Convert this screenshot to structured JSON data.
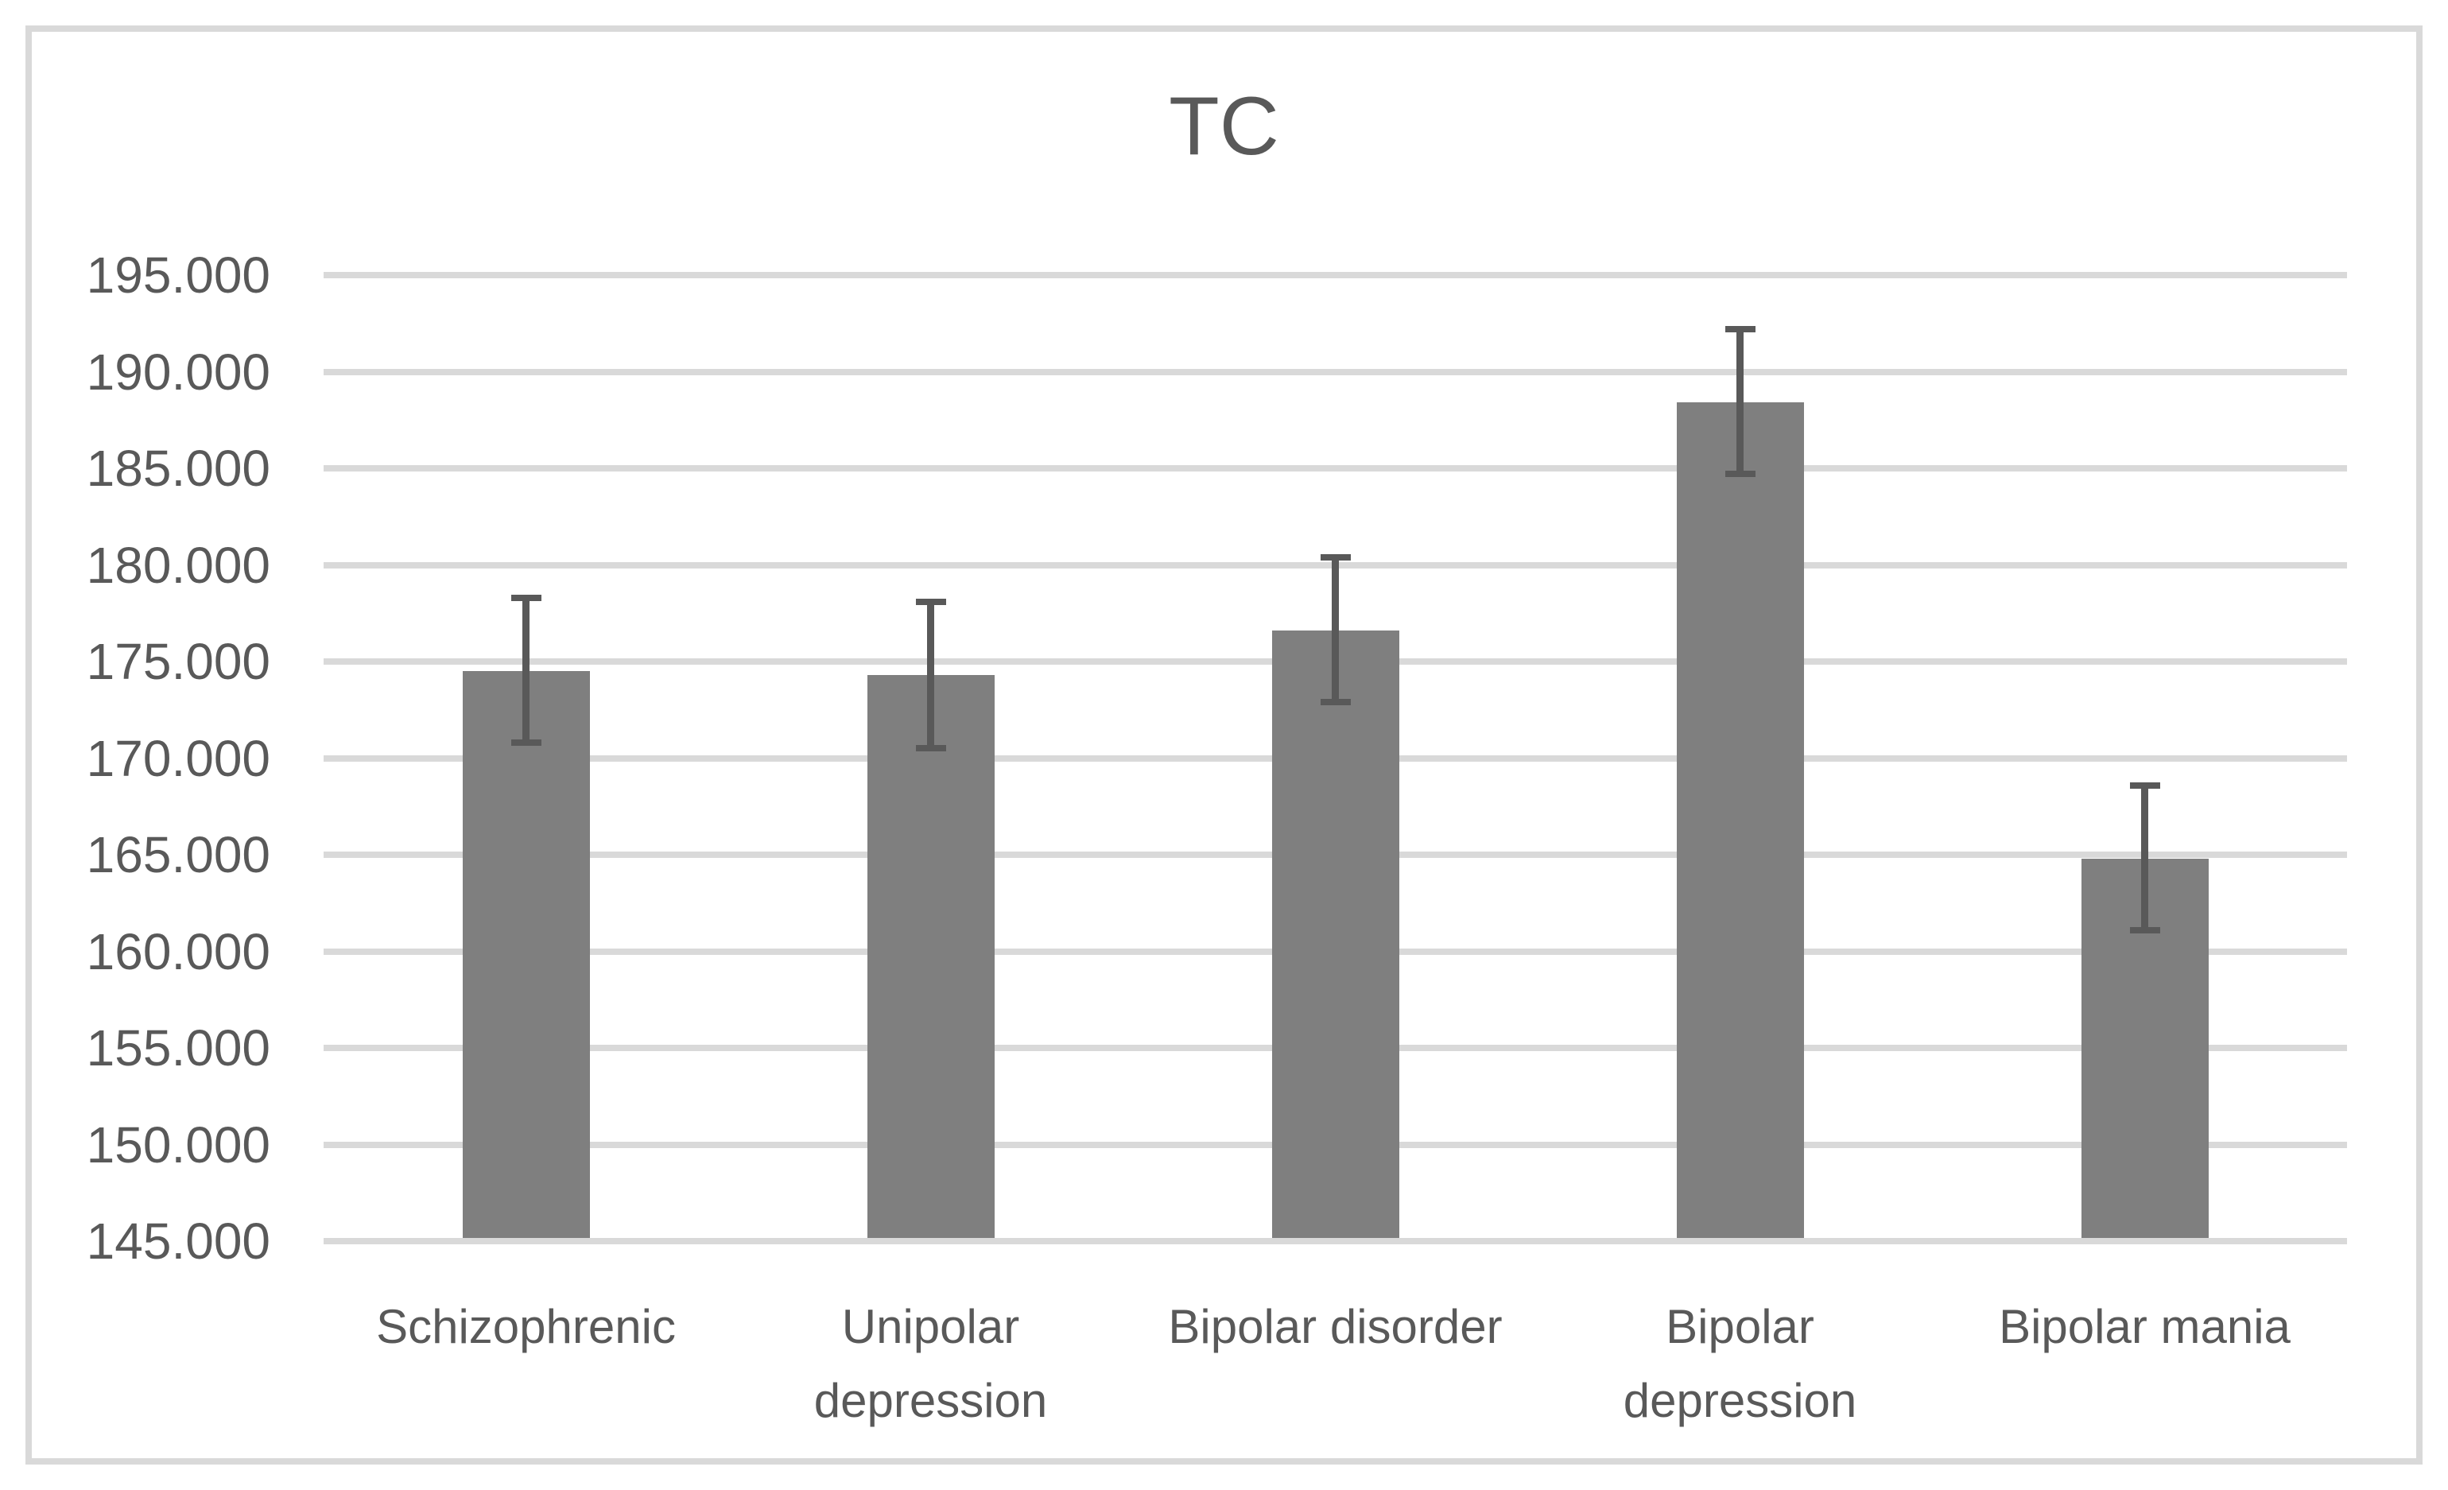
{
  "chart": {
    "title": "TC"
  },
  "colors": {
    "bar_fill": "#7f7f7f",
    "error_bar": "#595959",
    "gridline": "#d9d9d9",
    "axis_line": "#d9d9d9",
    "frame_border": "#d9d9d9",
    "text": "#595959",
    "background": "#ffffff"
  },
  "chart_data": {
    "type": "bar",
    "title": "TC",
    "categories": [
      "Schizophrenic",
      "Unipolar depression",
      "Bipolar disorder",
      "Bipolar depression",
      "Bipolar mania"
    ],
    "category_lines": [
      [
        "Schizophrenic"
      ],
      [
        "Unipolar",
        "depression"
      ],
      [
        "Bipolar disorder"
      ],
      [
        "Bipolar",
        "depression"
      ],
      [
        "Bipolar mania"
      ]
    ],
    "values": [
      174.5,
      174.3,
      176.6,
      188.4,
      164.8
    ],
    "error_high": [
      178.3,
      178.1,
      180.4,
      192.2,
      168.6
    ],
    "error_low": [
      170.8,
      170.5,
      172.9,
      184.7,
      161.1
    ],
    "xlabel": "",
    "ylabel": "",
    "ylim": [
      145,
      195
    ],
    "y_tick_values": [
      195,
      190,
      185,
      180,
      175,
      170,
      165,
      160,
      155,
      150,
      145
    ],
    "y_tick_labels": [
      "195.000",
      "190.000",
      "185.000",
      "180.000",
      "175.000",
      "170.000",
      "165.000",
      "160.000",
      "155.000",
      "150.000",
      "145.000"
    ],
    "grid": true,
    "legend_position": "none"
  }
}
